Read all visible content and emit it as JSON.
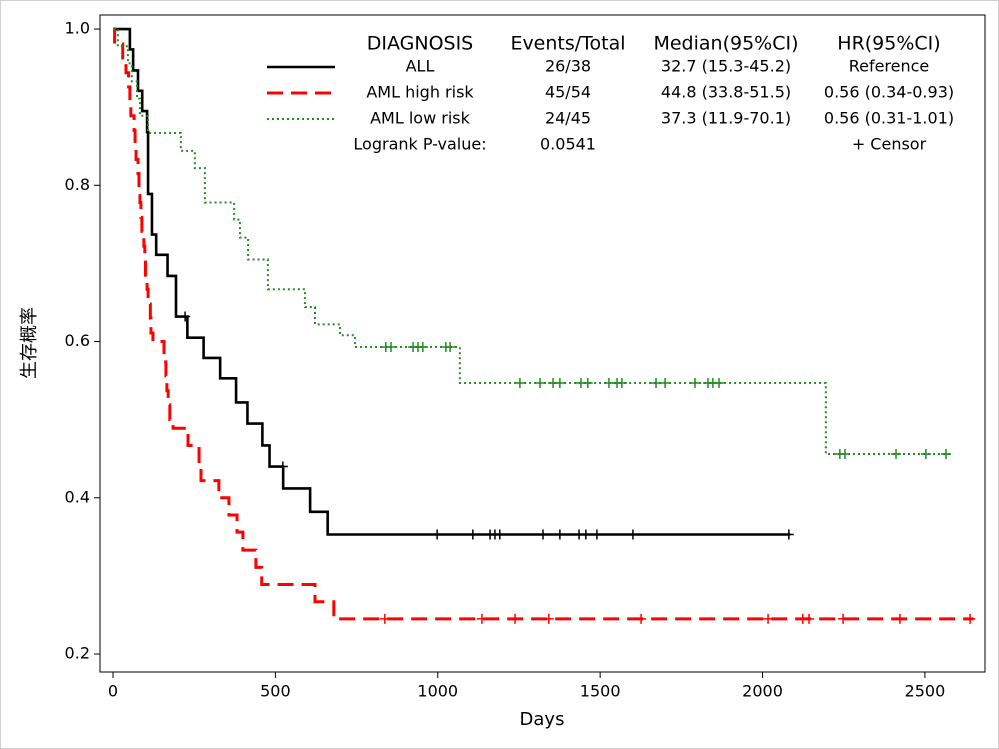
{
  "chart_data": {
    "type": "survival",
    "x_label": "Days",
    "y_label": "生存概率",
    "xlim": [
      -40,
      2685
    ],
    "ylim": [
      0.177,
      1.018
    ],
    "xticks": [
      0,
      500,
      1000,
      1500,
      2000,
      2500
    ],
    "yticks": [
      {
        "value": 1,
        "label": "1.0"
      },
      0.8,
      0.6,
      0.4,
      0.2
    ],
    "series": [
      {
        "name": "ALL",
        "color": "#000000",
        "dash": "solid",
        "x": [
          0,
          52,
          62,
          77,
          90,
          105,
          108,
          120,
          133,
          168,
          194,
          229,
          279,
          330,
          379,
          414,
          460,
          482,
          524,
          607,
          661,
          2085
        ],
        "values": [
          1.0,
          0.974,
          0.947,
          0.921,
          0.895,
          0.868,
          0.789,
          0.737,
          0.711,
          0.684,
          0.632,
          0.605,
          0.579,
          0.553,
          0.522,
          0.495,
          0.467,
          0.44,
          0.412,
          0.382,
          0.353,
          0.353
        ],
        "censor_x": [
          222,
          523,
          998,
          1108,
          1161,
          1176,
          1191,
          1324,
          1376,
          1435,
          1456,
          1490,
          1601,
          2081
        ]
      },
      {
        "name": "AML high risk",
        "color": "#ff0000",
        "dash": "dash",
        "x": [
          0,
          5,
          30,
          40,
          48,
          52,
          55,
          65,
          68,
          71,
          77,
          80,
          83,
          86,
          89,
          95,
          98,
          100,
          105,
          108,
          115,
          117,
          123,
          157,
          163,
          166,
          170,
          175,
          185,
          231,
          265,
          271,
          326,
          357,
          382,
          400,
          440,
          458,
          622,
          680,
          2650
        ],
        "values": [
          1.0,
          0.981,
          0.963,
          0.944,
          0.926,
          0.907,
          0.889,
          0.87,
          0.852,
          0.833,
          0.815,
          0.796,
          0.778,
          0.759,
          0.741,
          0.722,
          0.704,
          0.685,
          0.667,
          0.648,
          0.63,
          0.611,
          0.6,
          0.574,
          0.556,
          0.537,
          0.519,
          0.5,
          0.489,
          0.467,
          0.444,
          0.422,
          0.4,
          0.378,
          0.356,
          0.333,
          0.311,
          0.289,
          0.267,
          0.245,
          0.245
        ],
        "censor_x": [
          837,
          1136,
          1238,
          1342,
          1626,
          2017,
          2124,
          2143,
          2248,
          2423,
          2639
        ]
      },
      {
        "name": "AML low risk",
        "color": "#228b22",
        "dash": "dot",
        "x": [
          0,
          15,
          46,
          58,
          74,
          83,
          108,
          209,
          252,
          283,
          373,
          391,
          416,
          477,
          591,
          622,
          699,
          745,
          1068,
          2195,
          2583
        ],
        "values": [
          1.0,
          0.978,
          0.956,
          0.933,
          0.911,
          0.889,
          0.867,
          0.844,
          0.822,
          0.778,
          0.756,
          0.733,
          0.705,
          0.667,
          0.644,
          0.622,
          0.608,
          0.593,
          0.547,
          0.456,
          0.456
        ],
        "censor_x": [
          840,
          856,
          924,
          939,
          954,
          1025,
          1038,
          1253,
          1315,
          1355,
          1376,
          1441,
          1462,
          1527,
          1552,
          1567,
          1672,
          1700,
          1792,
          1832,
          1847,
          1866,
          2238,
          2254,
          2411,
          2503,
          2565
        ]
      }
    ],
    "legend_table": {
      "headers": [
        "DIAGNOSIS",
        "Events/Total",
        "Median(95%CI)",
        "HR(95%CI)"
      ],
      "rows": [
        [
          "26/38",
          "32.7 (15.3-45.2)",
          "Reference"
        ],
        [
          "45/54",
          "44.8 (33.8-51.5)",
          "0.56 (0.34-0.93)"
        ],
        [
          "24/45",
          "37.3 (11.9-70.1)",
          "0.56 (0.31-1.01)"
        ]
      ],
      "logrank_label": "Logrank P-value:",
      "logrank_value": "0.0541",
      "censor_label": "+ Censor"
    }
  }
}
